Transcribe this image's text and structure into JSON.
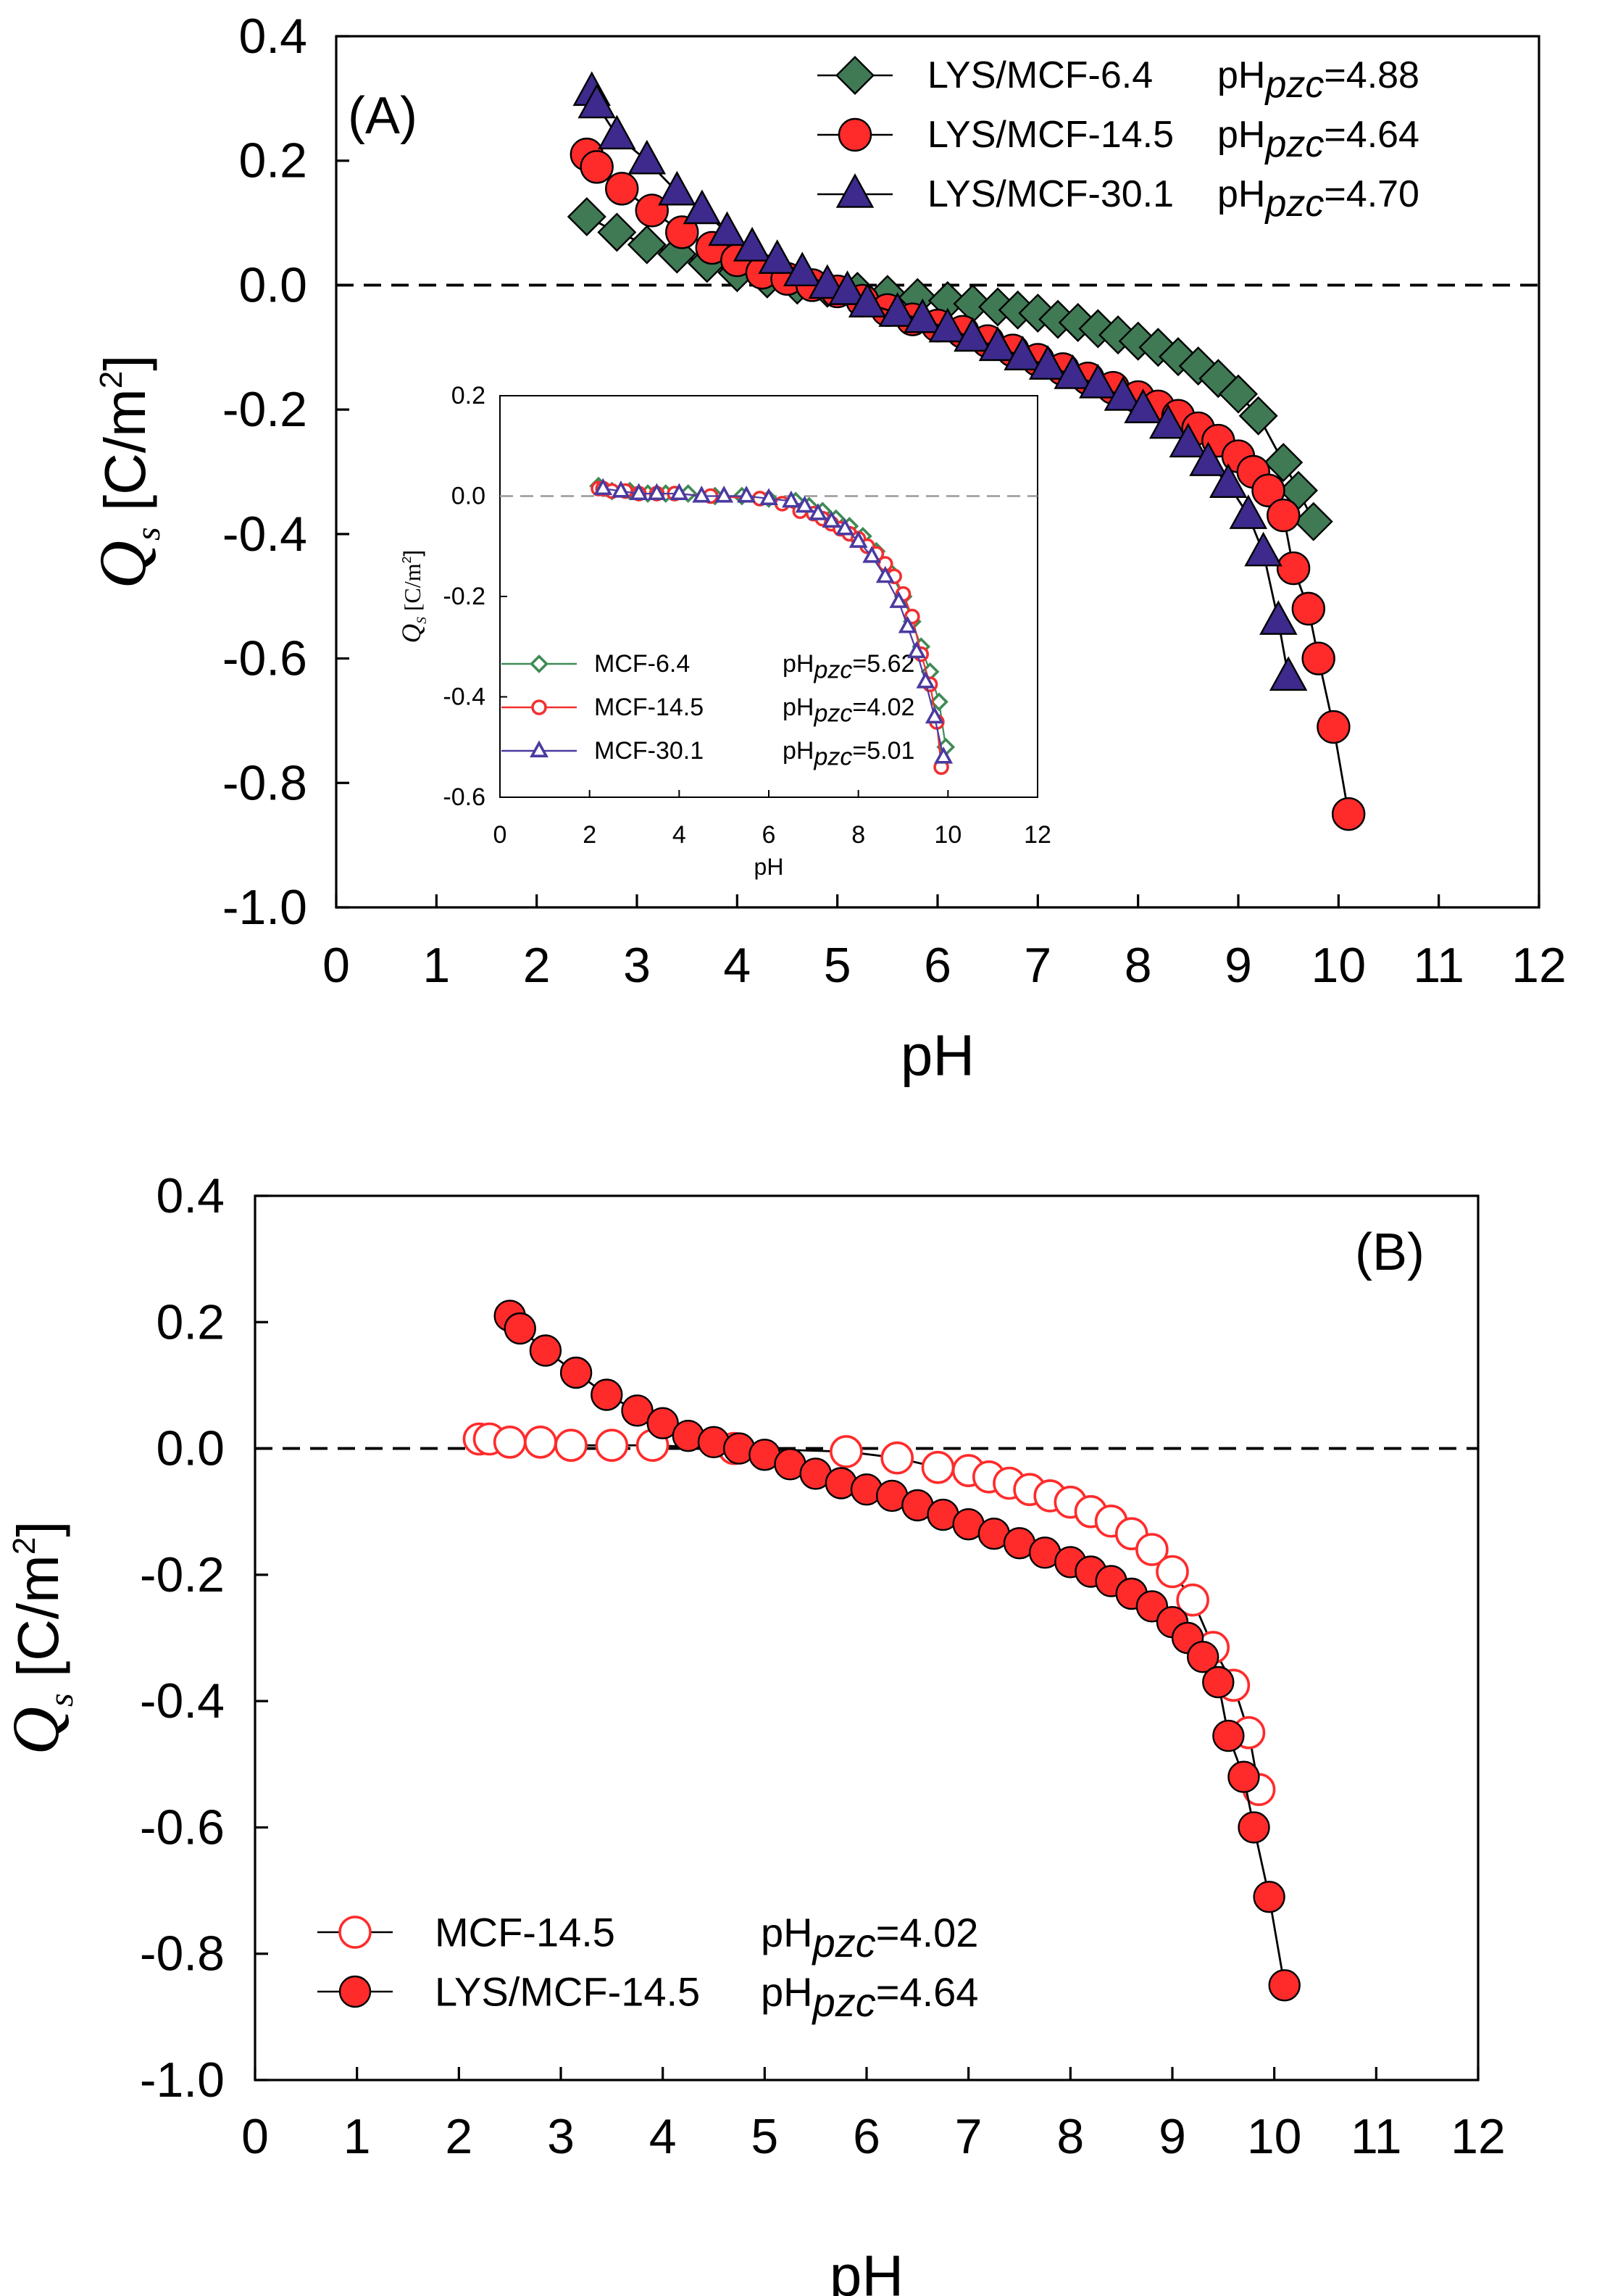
{
  "chart_data": [
    {
      "type": "line",
      "panel_label": "(A)",
      "xlabel": "pH",
      "ylabel": [
        "Q",
        "s",
        " [C/m",
        "2",
        "]"
      ],
      "xlim": [
        0,
        12
      ],
      "ylim": [
        -1,
        0.4
      ],
      "xticks": [
        0,
        1,
        2,
        3,
        4,
        5,
        6,
        7,
        8,
        9,
        10,
        11,
        12
      ],
      "yticks": [
        0.4,
        0.2,
        {
          "value": 0,
          "label": "0.0"
        },
        -0.2,
        -0.4,
        -0.6,
        -0.8,
        {
          "value": -1,
          "label": "-1.0"
        }
      ],
      "hline": 0,
      "legend": "upper right",
      "series": [
        {
          "name": "LYS/MCF-6.4",
          "note": [
            "pH",
            "pzc",
            "=4.88"
          ],
          "color": "#3f7a55",
          "marker": "diamond",
          "filled": true,
          "x": [
            2.5,
            2.8,
            3.1,
            3.4,
            3.7,
            4.0,
            4.3,
            4.6,
            4.9,
            5.2,
            5.5,
            5.8,
            6.1,
            6.35,
            6.6,
            6.8,
            7.0,
            7.2,
            7.4,
            7.6,
            7.8,
            8.0,
            8.2,
            8.4,
            8.6,
            8.8,
            9.0,
            9.2,
            9.45,
            9.6,
            9.75
          ],
          "values": [
            0.11,
            0.085,
            0.065,
            0.05,
            0.035,
            0.02,
            0.01,
            0,
            -0.005,
            -0.01,
            -0.015,
            -0.02,
            -0.025,
            -0.03,
            -0.035,
            -0.04,
            -0.045,
            -0.055,
            -0.06,
            -0.07,
            -0.08,
            -0.09,
            -0.1,
            -0.115,
            -0.13,
            -0.15,
            -0.175,
            -0.21,
            -0.285,
            -0.33,
            -0.38
          ]
        },
        {
          "name": "LYS/MCF-14.5",
          "note": [
            "pH",
            "pzc",
            "=4.64"
          ],
          "color": "#ff2b2b",
          "marker": "circle",
          "filled": true,
          "x": [
            2.5,
            2.6,
            2.85,
            3.15,
            3.45,
            3.75,
            4.0,
            4.25,
            4.5,
            4.75,
            5.0,
            5.25,
            5.5,
            5.75,
            6.0,
            6.25,
            6.5,
            6.75,
            7.0,
            7.25,
            7.5,
            7.75,
            8.0,
            8.2,
            8.4,
            8.6,
            8.8,
            9.0,
            9.15,
            9.3,
            9.45,
            9.55,
            9.7,
            9.8,
            9.95,
            10.1
          ],
          "values": [
            0.21,
            0.19,
            0.155,
            0.12,
            0.085,
            0.06,
            0.04,
            0.02,
            0.01,
            0,
            -0.01,
            -0.025,
            -0.04,
            -0.055,
            -0.065,
            -0.075,
            -0.09,
            -0.105,
            -0.12,
            -0.135,
            -0.15,
            -0.165,
            -0.18,
            -0.195,
            -0.21,
            -0.23,
            -0.25,
            -0.275,
            -0.3,
            -0.33,
            -0.37,
            -0.455,
            -0.52,
            -0.6,
            -0.71,
            -0.85
          ]
        },
        {
          "name": "LYS/MCF-30.1",
          "note": [
            "pH",
            "pzc",
            "=4.70"
          ],
          "color": "#3d2a8c",
          "marker": "triangle",
          "filled": true,
          "x": [
            2.55,
            2.6,
            2.8,
            3.1,
            3.4,
            3.65,
            3.9,
            4.15,
            4.4,
            4.65,
            4.9,
            5.1,
            5.3,
            5.6,
            5.85,
            6.1,
            6.35,
            6.6,
            6.85,
            7.1,
            7.35,
            7.6,
            7.85,
            8.05,
            8.3,
            8.5,
            8.7,
            8.9,
            9.1,
            9.25,
            9.4,
            9.5
          ],
          "values": [
            0.31,
            0.29,
            0.24,
            0.2,
            0.15,
            0.12,
            0.085,
            0.06,
            0.04,
            0.02,
            0,
            -0.01,
            -0.03,
            -0.045,
            -0.055,
            -0.07,
            -0.085,
            -0.1,
            -0.115,
            -0.13,
            -0.145,
            -0.16,
            -0.18,
            -0.2,
            -0.225,
            -0.255,
            -0.285,
            -0.32,
            -0.37,
            -0.43,
            -0.54,
            -0.63
          ]
        }
      ]
    },
    {
      "type": "line",
      "xlabel": "pH",
      "ylabel": [
        "Q",
        "S",
        " [C/m",
        "2",
        "]"
      ],
      "xlim": [
        0,
        12
      ],
      "ylim": [
        -0.6,
        0.2
      ],
      "xticks": [
        0,
        2,
        4,
        6,
        8,
        10,
        12
      ],
      "yticks": [
        0.2,
        {
          "value": 0,
          "label": "0.0"
        },
        -0.2,
        -0.4,
        -0.6
      ],
      "hline": 0,
      "legend": "lower left",
      "series": [
        {
          "name": "MCF-6.4",
          "note": [
            "pH",
            "pzc",
            "=5.62"
          ],
          "color": "#3f8a55",
          "marker": "diamond",
          "filled": false,
          "x": [
            2.2,
            2.5,
            2.9,
            3.3,
            3.7,
            4.2,
            4.8,
            5.4,
            6.0,
            6.6,
            6.9,
            7.2,
            7.5,
            7.8,
            8.1,
            8.4,
            8.7,
            9.0,
            9.2,
            9.4,
            9.6,
            9.8,
            9.95
          ],
          "values": [
            0.02,
            0.01,
            0.01,
            0.005,
            0.005,
            0.005,
            0,
            0,
            -0.005,
            -0.01,
            -0.02,
            -0.03,
            -0.045,
            -0.06,
            -0.08,
            -0.11,
            -0.15,
            -0.2,
            -0.25,
            -0.3,
            -0.35,
            -0.41,
            -0.5
          ]
        },
        {
          "name": "MCF-14.5",
          "note": [
            "pH",
            "pzc",
            "=4.02"
          ],
          "color": "#f03030",
          "marker": "circle",
          "filled": false,
          "x": [
            2.2,
            2.3,
            2.5,
            2.8,
            3.1,
            3.5,
            3.9,
            4.7,
            5.8,
            6.3,
            6.7,
            7.0,
            7.2,
            7.4,
            7.6,
            7.8,
            8.0,
            8.2,
            8.4,
            8.6,
            8.8,
            9.0,
            9.2,
            9.4,
            9.6,
            9.75,
            9.85
          ],
          "values": [
            0.015,
            0.015,
            0.01,
            0.01,
            0.005,
            0.005,
            0.005,
            0,
            -0.005,
            -0.015,
            -0.03,
            -0.035,
            -0.045,
            -0.055,
            -0.065,
            -0.075,
            -0.085,
            -0.1,
            -0.115,
            -0.135,
            -0.16,
            -0.195,
            -0.24,
            -0.315,
            -0.375,
            -0.45,
            -0.54
          ]
        },
        {
          "name": "MCF-30.1",
          "note": [
            "pH",
            "pzc",
            "=5.01"
          ],
          "color": "#4a3aa0",
          "marker": "triangle",
          "filled": false,
          "x": [
            2.3,
            2.7,
            3.1,
            3.5,
            4.0,
            4.5,
            5.0,
            5.5,
            6.0,
            6.5,
            6.8,
            7.1,
            7.4,
            7.7,
            8.0,
            8.3,
            8.6,
            8.9,
            9.1,
            9.3,
            9.5,
            9.7,
            9.9
          ],
          "values": [
            0.015,
            0.01,
            0.005,
            0.005,
            0.005,
            0,
            0,
            0,
            -0.005,
            -0.01,
            -0.02,
            -0.035,
            -0.05,
            -0.065,
            -0.09,
            -0.12,
            -0.16,
            -0.21,
            -0.26,
            -0.31,
            -0.37,
            -0.44,
            -0.52
          ]
        }
      ]
    },
    {
      "type": "line",
      "panel_label": "(B)",
      "xlabel": "pH",
      "ylabel": [
        "Q",
        "s",
        " [C/m",
        "2",
        "]"
      ],
      "xlim": [
        0,
        12
      ],
      "ylim": [
        -1,
        0.4
      ],
      "xticks": [
        0,
        1,
        2,
        3,
        4,
        5,
        6,
        7,
        8,
        9,
        10,
        11,
        12
      ],
      "yticks": [
        0.4,
        0.2,
        {
          "value": 0,
          "label": "0.0"
        },
        -0.2,
        -0.4,
        -0.6,
        -0.8,
        {
          "value": -1,
          "label": "-1.0"
        }
      ],
      "hline": 0,
      "legend": "lower left",
      "series": [
        {
          "name": "MCF-14.5",
          "note": [
            "pH",
            "pzc",
            "=4.02"
          ],
          "color": "#ff2b2b",
          "marker": "circle",
          "filled": false,
          "x": [
            2.2,
            2.3,
            2.5,
            2.8,
            3.1,
            3.5,
            3.9,
            4.7,
            5.8,
            6.3,
            6.7,
            7.0,
            7.2,
            7.4,
            7.6,
            7.8,
            8.0,
            8.2,
            8.4,
            8.6,
            8.8,
            9.0,
            9.2,
            9.4,
            9.6,
            9.75,
            9.85
          ],
          "values": [
            0.015,
            0.015,
            0.01,
            0.01,
            0.005,
            0.005,
            0.005,
            0,
            -0.005,
            -0.015,
            -0.03,
            -0.035,
            -0.045,
            -0.055,
            -0.065,
            -0.075,
            -0.085,
            -0.1,
            -0.115,
            -0.135,
            -0.16,
            -0.195,
            -0.24,
            -0.315,
            -0.375,
            -0.45,
            -0.54
          ]
        },
        {
          "name": "LYS/MCF-14.5",
          "note": [
            "pH",
            "pzc",
            "=4.64"
          ],
          "color": "#ff2b2b",
          "marker": "circle",
          "filled": true,
          "x": [
            2.5,
            2.6,
            2.85,
            3.15,
            3.45,
            3.75,
            4.0,
            4.25,
            4.5,
            4.75,
            5.0,
            5.25,
            5.5,
            5.75,
            6.0,
            6.25,
            6.5,
            6.75,
            7.0,
            7.25,
            7.5,
            7.75,
            8.0,
            8.2,
            8.4,
            8.6,
            8.8,
            9.0,
            9.15,
            9.3,
            9.45,
            9.55,
            9.7,
            9.8,
            9.95,
            10.1
          ],
          "values": [
            0.21,
            0.19,
            0.155,
            0.12,
            0.085,
            0.06,
            0.04,
            0.02,
            0.01,
            0,
            -0.01,
            -0.025,
            -0.04,
            -0.055,
            -0.065,
            -0.075,
            -0.09,
            -0.105,
            -0.12,
            -0.135,
            -0.15,
            -0.165,
            -0.18,
            -0.195,
            -0.21,
            -0.23,
            -0.25,
            -0.275,
            -0.3,
            -0.33,
            -0.37,
            -0.455,
            -0.52,
            -0.6,
            -0.71,
            -0.85
          ]
        }
      ]
    }
  ]
}
